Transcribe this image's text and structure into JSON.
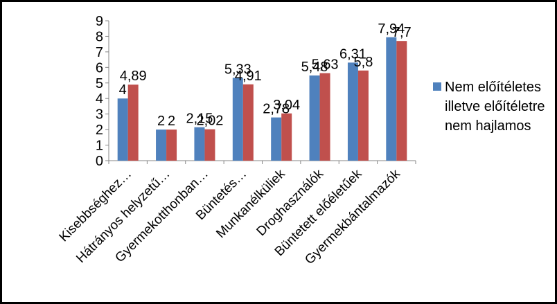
{
  "chart_data": {
    "type": "bar",
    "categories": [
      "Kisebbséghez…",
      "Hátrányos helyzetű…",
      "Gyermekotthonban…",
      "Büntetés…",
      "Munkanélküliek",
      "Droghasználók",
      "Büntetett előéletűek",
      "Gyermekbántalmazók"
    ],
    "series": [
      {
        "values": [
          4,
          2,
          2.15,
          5.33,
          2.78,
          5.48,
          6.31,
          7.94
        ],
        "labels": [
          "4",
          "2",
          "2,15",
          "5,33",
          "2,78",
          "5,48",
          "6,31",
          "7,94"
        ],
        "color": "#4f81bd"
      },
      {
        "name": "Nem előítéletes illetve előítéletre nem hajlamos",
        "values": [
          4.89,
          2,
          2.02,
          4.91,
          3.04,
          5.63,
          5.8,
          7.7
        ],
        "labels": [
          "4,89",
          "2",
          "2,02",
          "4,91",
          "3,04",
          "5,63",
          "5,8",
          "7,7"
        ],
        "color": "#c0504d"
      }
    ],
    "ylim": [
      0,
      9
    ],
    "yticks": [
      "0",
      "1",
      "2",
      "3",
      "4",
      "5",
      "6",
      "7",
      "8",
      "9"
    ],
    "title": "",
    "xlabel": "",
    "ylabel": "",
    "legend_position": "right",
    "grid": false
  }
}
